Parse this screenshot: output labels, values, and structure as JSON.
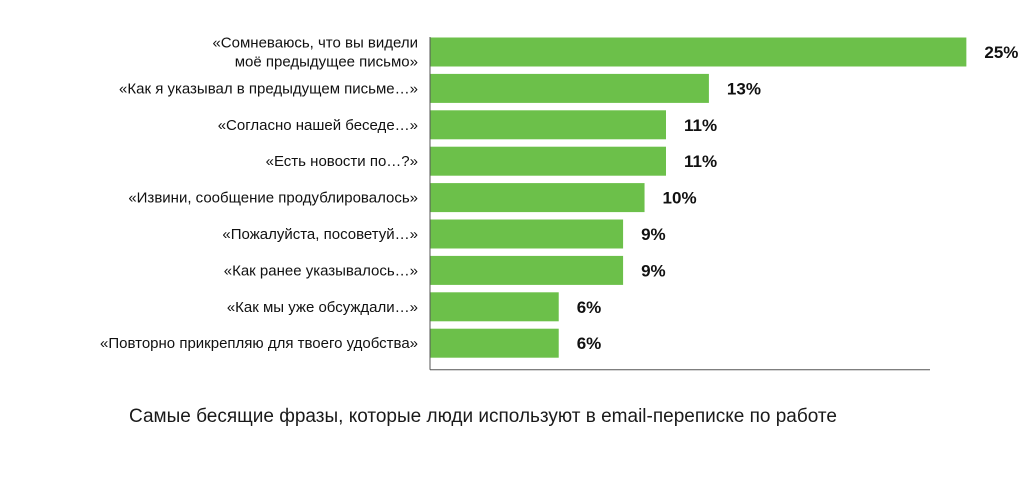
{
  "chart_data": {
    "type": "bar",
    "orientation": "horizontal",
    "caption": "Самые бесящие фразы, которые люди используют в email-переписке по работе",
    "categories": [
      [
        "«Сомневаюсь, что вы видели",
        "моё предыдущее письмо»"
      ],
      [
        "«Как я указывал в предыдущем письме…»"
      ],
      [
        "«Согласно нашей беседе…»"
      ],
      [
        "«Есть новости по…?»"
      ],
      [
        "«Извини, сообщение продублировалось»"
      ],
      [
        "«Пожалуйста, посоветуй…»"
      ],
      [
        "«Как ранее указывалось…»"
      ],
      [
        "«Как мы уже обсуждали…»"
      ],
      [
        "«Повторно прикрепляю для твоего удобства»"
      ]
    ],
    "values": [
      25,
      13,
      11,
      11,
      10,
      9,
      9,
      6,
      6
    ],
    "value_labels": [
      "25%",
      "13%",
      "11%",
      "11%",
      "10%",
      "9%",
      "9%",
      "6%",
      "6%"
    ],
    "xlim": [
      0,
      27.5
    ],
    "grid": false,
    "legend": "none",
    "bar_color": "#6cc04a",
    "axis_color": "#555555"
  }
}
